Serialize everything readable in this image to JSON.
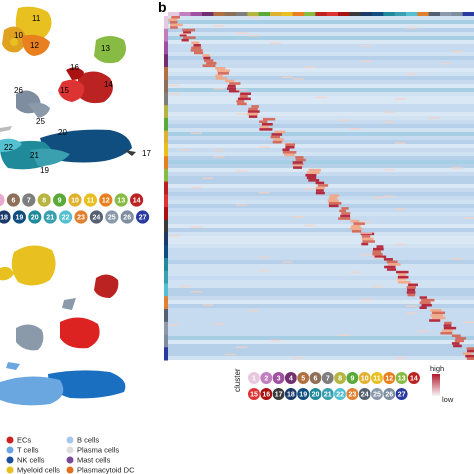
{
  "panel_b_label": "b",
  "umap_top_labels": [
    "11",
    "10",
    "12",
    "13",
    "16",
    "14",
    "15",
    "26",
    "25",
    "20",
    "22",
    "21",
    "19",
    "17"
  ],
  "cluster_chips_left": [
    {
      "n": "",
      "color": "#e8a8d0"
    },
    {
      "n": "6",
      "color": "#8e6f5a"
    },
    {
      "n": "7",
      "color": "#7e7e7e"
    },
    {
      "n": "8",
      "color": "#b5b540"
    },
    {
      "n": "9",
      "color": "#5aaa3a"
    },
    {
      "n": "10",
      "color": "#e0b030"
    },
    {
      "n": "11",
      "color": "#e8c020"
    },
    {
      "n": "12",
      "color": "#e88020"
    },
    {
      "n": "13",
      "color": "#88bb44"
    },
    {
      "n": "14",
      "color": "#bb2222"
    },
    {
      "n": "18",
      "color": "#1a3a6a"
    },
    {
      "n": "19",
      "color": "#104e80"
    },
    {
      "n": "20",
      "color": "#1f8a9a"
    },
    {
      "n": "21",
      "color": "#3aa0b0"
    },
    {
      "n": "22",
      "color": "#55c0d0"
    },
    {
      "n": "23",
      "color": "#e08030"
    },
    {
      "n": "24",
      "color": "#556070"
    },
    {
      "n": "25",
      "color": "#8a9aaa"
    },
    {
      "n": "26",
      "color": "#7e8ea0"
    },
    {
      "n": "27",
      "color": "#2a3aa0"
    }
  ],
  "heatmap_legend": {
    "cluster_label": "cluster",
    "high_label": "high",
    "low_label": "low"
  },
  "heatmap_clusters": [
    {
      "n": "1",
      "color": "#e8c8e0"
    },
    {
      "n": "2",
      "color": "#c080c0"
    },
    {
      "n": "3",
      "color": "#a050a0"
    },
    {
      "n": "4",
      "color": "#703070"
    },
    {
      "n": "5",
      "color": "#b07040"
    },
    {
      "n": "6",
      "color": "#8e6f5a"
    },
    {
      "n": "7",
      "color": "#7e7e7e"
    },
    {
      "n": "8",
      "color": "#b5b540"
    },
    {
      "n": "9",
      "color": "#5aaa3a"
    },
    {
      "n": "10",
      "color": "#e0b030"
    },
    {
      "n": "11",
      "color": "#e8c020"
    },
    {
      "n": "12",
      "color": "#e88020"
    },
    {
      "n": "13",
      "color": "#88bb44"
    },
    {
      "n": "14",
      "color": "#bb2222"
    },
    {
      "n": "15",
      "color": "#dd3333"
    },
    {
      "n": "16",
      "color": "#aa1111"
    },
    {
      "n": "17",
      "color": "#3a3a3a"
    },
    {
      "n": "18",
      "color": "#1a3a6a"
    },
    {
      "n": "19",
      "color": "#104e80"
    },
    {
      "n": "20",
      "color": "#1f8a9a"
    },
    {
      "n": "21",
      "color": "#3aa0b0"
    },
    {
      "n": "22",
      "color": "#55c0d0"
    },
    {
      "n": "23",
      "color": "#e08030"
    },
    {
      "n": "24",
      "color": "#556070"
    },
    {
      "n": "25",
      "color": "#8a9aaa"
    },
    {
      "n": "26",
      "color": "#7e8ea0"
    },
    {
      "n": "27",
      "color": "#2a3aa0"
    }
  ],
  "cell_type_legend": [
    {
      "label": "ECs",
      "color": "#cc2222"
    },
    {
      "label": "B cells",
      "color": "#a8c8e8"
    },
    {
      "label": "T cells",
      "color": "#6aa6e0"
    },
    {
      "label": "Plasma cells",
      "color": "#dddddd"
    },
    {
      "label": "NK cells",
      "color": "#1a4fa0"
    },
    {
      "label": "Mast cells",
      "color": "#7a4a9a"
    },
    {
      "label": "Myeloid cells",
      "color": "#e8c020"
    },
    {
      "label": "Plasmacytoid DC",
      "color": "#e07020"
    }
  ],
  "colors": {
    "heatmap_low": "#c6dbef",
    "heatmap_high": "#b2182b",
    "heatmap_mid": "#f7f7f7"
  }
}
